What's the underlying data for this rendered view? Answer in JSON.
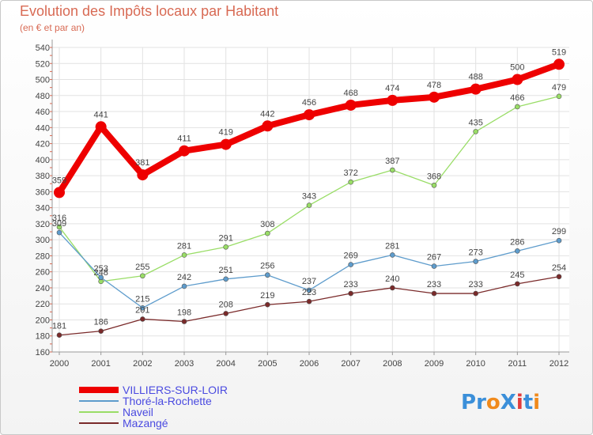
{
  "chart_data": {
    "type": "line",
    "title": "Evolution des Impôts locaux par Habitant",
    "subtitle": "(en € et par an)",
    "x": [
      "2000",
      "2001",
      "2002",
      "2003",
      "2004",
      "2005",
      "2006",
      "2007",
      "2008",
      "2009",
      "2010",
      "2011",
      "2012"
    ],
    "ylim": [
      160,
      540
    ],
    "yticks": [
      160,
      180,
      200,
      220,
      240,
      260,
      280,
      300,
      320,
      340,
      360,
      380,
      400,
      420,
      440,
      460,
      480,
      500,
      520,
      540
    ],
    "grid": true,
    "legend_position": "bottom-left",
    "series": [
      {
        "name": "VILLIERS-SUR-LOIR",
        "color": "#ee0000",
        "values": [
          359,
          441,
          381,
          411,
          419,
          442,
          456,
          468,
          474,
          478,
          488,
          500,
          519
        ]
      },
      {
        "name": "Thoré-la-Rochette",
        "color": "#5e9ccc",
        "values": [
          309,
          253,
          215,
          242,
          251,
          256,
          237,
          269,
          281,
          267,
          273,
          286,
          299
        ]
      },
      {
        "name": "Naveil",
        "color": "#99dd66",
        "values": [
          316,
          248,
          255,
          281,
          291,
          308,
          343,
          372,
          387,
          368,
          435,
          466,
          479
        ]
      },
      {
        "name": "Mazangé",
        "color": "#7a2a2a",
        "values": [
          181,
          186,
          201,
          198,
          208,
          219,
          223,
          233,
          240,
          233,
          233,
          245,
          254
        ]
      }
    ]
  },
  "logo": {
    "text": "ProXiti",
    "colors": [
      "#3b8fd9",
      "#3b8fd9",
      "#f08a1c",
      "#3b8fd9",
      "#e23c3c",
      "#3b8fd9",
      "#f08a1c"
    ]
  }
}
